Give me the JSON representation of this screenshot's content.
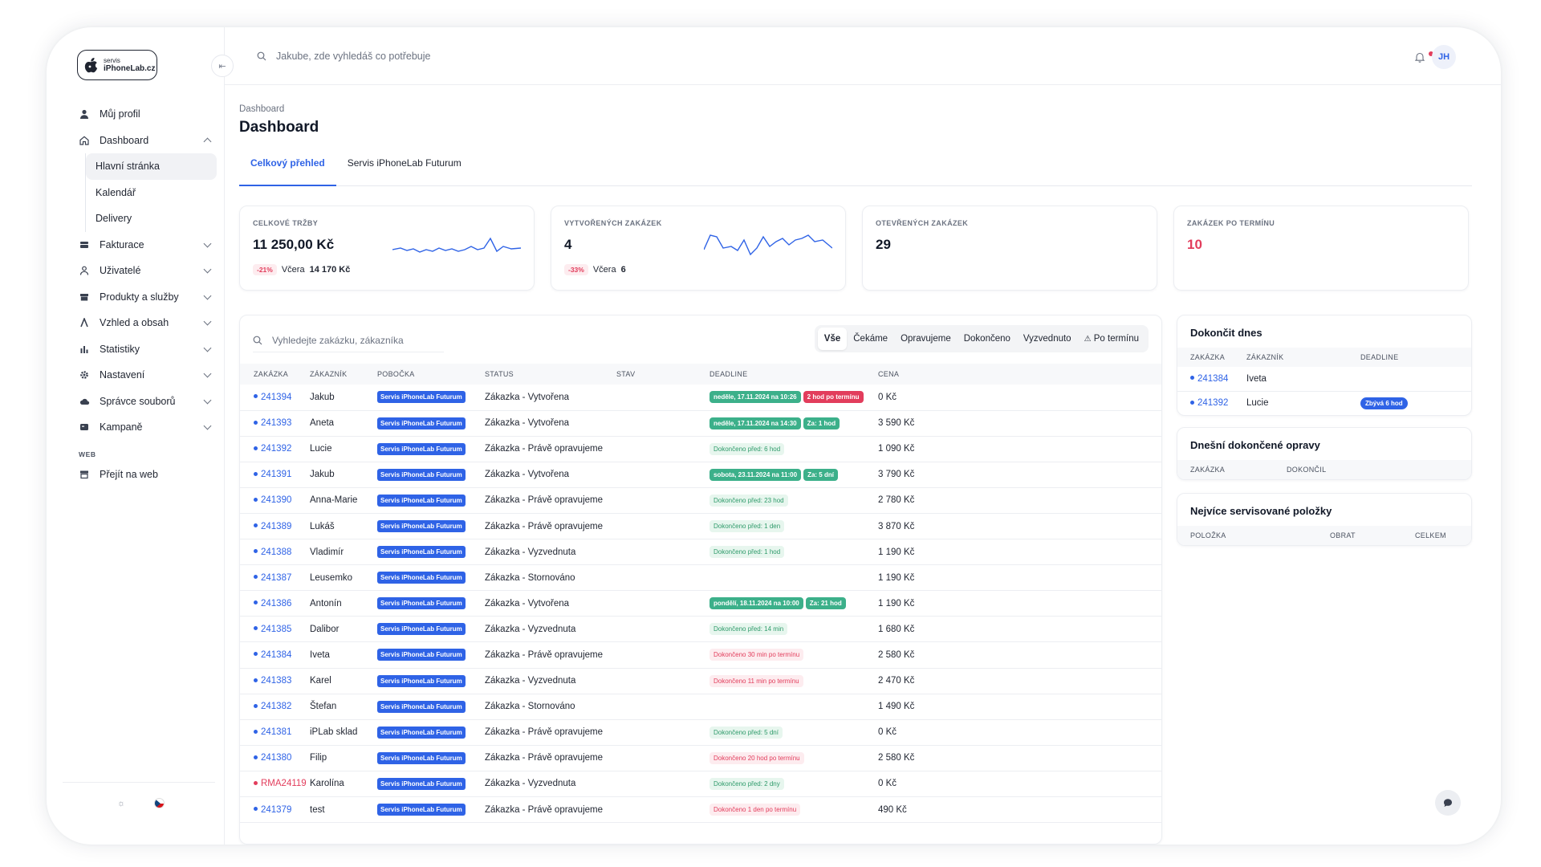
{
  "logo": {
    "small": "servis",
    "big": "iPhoneLab.cz"
  },
  "topbar": {
    "search_placeholder": "Jakube, zde vyhledáš co potřebuje",
    "avatar_initials": "JH"
  },
  "sidebar": {
    "items": [
      {
        "label": "Můj profil",
        "icon": "user-icon"
      },
      {
        "label": "Dashboard",
        "icon": "home-icon",
        "expanded": true,
        "children": [
          {
            "label": "Hlavní stránka",
            "active": true
          },
          {
            "label": "Kalendář"
          },
          {
            "label": "Delivery"
          }
        ]
      },
      {
        "label": "Fakturace",
        "icon": "invoice-icon"
      },
      {
        "label": "Uživatelé",
        "icon": "users-icon"
      },
      {
        "label": "Produkty a služby",
        "icon": "box-icon"
      },
      {
        "label": "Vzhled a obsah",
        "icon": "paint-icon"
      },
      {
        "label": "Statistiky",
        "icon": "chart-icon"
      },
      {
        "label": "Nastavení",
        "icon": "gear-icon"
      },
      {
        "label": "Správce souborů",
        "icon": "cloud-icon"
      },
      {
        "label": "Kampaně",
        "icon": "campaign-icon"
      }
    ],
    "section_web": "WEB",
    "web_item": "Přejít na web"
  },
  "main": {
    "breadcrumb": "Dashboard",
    "title": "Dashboard",
    "tabs": [
      "Celkový přehled",
      "Servis iPhoneLab Futurum"
    ]
  },
  "cards": [
    {
      "label": "CELKOVÉ TRŽBY",
      "value": "11 250,00 Kč",
      "pct": "-21%",
      "prev_label": "Včera",
      "prev_value": "14 170 Kč"
    },
    {
      "label": "VYTVOŘENÝCH ZAKÁZEK",
      "value": "4",
      "pct": "-33%",
      "prev_label": "Včera",
      "prev_value": "6"
    },
    {
      "label": "OTEVŘENÝCH ZAKÁZEK",
      "value": "29"
    },
    {
      "label": "ZAKÁZEK PO TERMÍNU",
      "value": "10"
    }
  ],
  "orders": {
    "search_placeholder": "Vyhledejte zakázku, zákazníka",
    "filters": [
      "Vše",
      "Čekáme",
      "Opravujeme",
      "Dokončeno",
      "Vyzvednuto",
      "Po termínu"
    ],
    "columns": [
      "ZAKÁZKA",
      "ZÁKAZNÍK",
      "POBOČKA",
      "STATUS",
      "STAV",
      "DEADLINE",
      "CENA"
    ],
    "branch": "Servis iPhoneLab Futurum",
    "rows": [
      {
        "id": "241394",
        "customer": "Jakub",
        "status": "Zákazka - Vytvořena",
        "deadline": [
          {
            "text": "neděle, 17.11.2024 na 10:26",
            "kind": "green"
          },
          {
            "text": "2 hod po termínu",
            "kind": "red"
          }
        ],
        "price": "0 Kč"
      },
      {
        "id": "241393",
        "customer": "Aneta",
        "status": "Zákazka - Vytvořena",
        "deadline": [
          {
            "text": "neděle, 17.11.2024 na 14:30",
            "kind": "green"
          },
          {
            "text": "Za: 1 hod",
            "kind": "green"
          }
        ],
        "price": "3 590 Kč"
      },
      {
        "id": "241392",
        "customer": "Lucie",
        "status": "Zákazka - Právě opravujeme",
        "deadline": [
          {
            "text": "Dokončeno před: 6 hod",
            "kind": "green-lt"
          }
        ],
        "price": "1 090 Kč"
      },
      {
        "id": "241391",
        "customer": "Jakub",
        "status": "Zákazka - Vytvořena",
        "deadline": [
          {
            "text": "sobota, 23.11.2024 na 11:00",
            "kind": "green"
          },
          {
            "text": "Za: 5 dní",
            "kind": "green"
          }
        ],
        "price": "3 790 Kč"
      },
      {
        "id": "241390",
        "customer": "Anna-Marie",
        "status": "Zákazka - Právě opravujeme",
        "deadline": [
          {
            "text": "Dokončeno před: 23 hod",
            "kind": "green-lt"
          }
        ],
        "price": "2 780 Kč"
      },
      {
        "id": "241389",
        "customer": "Lukáš",
        "status": "Zákazka - Právě opravujeme",
        "deadline": [
          {
            "text": "Dokončeno před: 1 den",
            "kind": "green-lt"
          }
        ],
        "price": "3 870 Kč"
      },
      {
        "id": "241388",
        "customer": "Vladimír",
        "status": "Zákazka - Vyzvednuta",
        "deadline": [
          {
            "text": "Dokončeno před: 1 hod",
            "kind": "green-lt"
          }
        ],
        "price": "1 190 Kč"
      },
      {
        "id": "241387",
        "customer": "Leusemko",
        "status": "Zákazka - Stornováno",
        "deadline": [],
        "price": "1 190 Kč"
      },
      {
        "id": "241386",
        "customer": "Antonín",
        "status": "Zákazka - Vytvořena",
        "deadline": [
          {
            "text": "pondělí, 18.11.2024 na 10:00",
            "kind": "green"
          },
          {
            "text": "Za: 21 hod",
            "kind": "green"
          }
        ],
        "price": "1 190 Kč"
      },
      {
        "id": "241385",
        "customer": "Dalibor",
        "status": "Zákazka - Vyzvednuta",
        "deadline": [
          {
            "text": "Dokončeno před: 14 min",
            "kind": "green-lt"
          }
        ],
        "price": "1 680 Kč"
      },
      {
        "id": "241384",
        "customer": "Iveta",
        "status": "Zákazka - Právě opravujeme",
        "deadline": [
          {
            "text": "Dokončeno 30 min po termínu",
            "kind": "red-lt"
          }
        ],
        "price": "2 580 Kč"
      },
      {
        "id": "241383",
        "customer": "Karel",
        "status": "Zákazka - Vyzvednuta",
        "deadline": [
          {
            "text": "Dokončeno 11 min po termínu",
            "kind": "red-lt"
          }
        ],
        "price": "2 470 Kč"
      },
      {
        "id": "241382",
        "customer": "Štefan",
        "status": "Zákazka - Stornováno",
        "deadline": [],
        "price": "1 490 Kč"
      },
      {
        "id": "241381",
        "customer": "iPLab sklad",
        "status": "Zákazka - Právě opravujeme",
        "deadline": [
          {
            "text": "Dokončeno před: 5 dní",
            "kind": "green-lt"
          }
        ],
        "price": "0 Kč"
      },
      {
        "id": "241380",
        "customer": "Filip",
        "status": "Zákazka - Právě opravujeme",
        "deadline": [
          {
            "text": "Dokončeno 20 hod po termínu",
            "kind": "red-lt"
          }
        ],
        "price": "2 580 Kč"
      },
      {
        "id": "RMA24119",
        "customer": "Karolína",
        "status": "Zákazka - Vyzvednuta",
        "deadline": [
          {
            "text": "Dokončeno před: 2 dny",
            "kind": "green-lt"
          }
        ],
        "price": "0 Kč",
        "rma": true
      },
      {
        "id": "241379",
        "customer": "test",
        "status": "Zákazka - Právě opravujeme",
        "deadline": [
          {
            "text": "Dokončeno 1 den po termínu",
            "kind": "red-lt"
          }
        ],
        "price": "490 Kč"
      }
    ]
  },
  "panels": {
    "finish_today": {
      "title": "Dokončit dnes",
      "columns": [
        "ZAKÁZKA",
        "ZÁKAZNÍK",
        "DEADLINE"
      ],
      "rows": [
        {
          "id": "241384",
          "customer": "Iveta",
          "deadline": ""
        },
        {
          "id": "241392",
          "customer": "Lucie",
          "deadline": "Zbývá 6 hod"
        }
      ]
    },
    "done_today": {
      "title": "Dnešní dokončené opravy",
      "columns": [
        "ZAKÁZKA",
        "DOKONČIL"
      ]
    },
    "top_items": {
      "title": "Nejvíce servisované položky",
      "columns": [
        "POLOŽKA",
        "OBRAT",
        "CELKEM"
      ]
    }
  },
  "colors": {
    "accent": "#2f63e6",
    "danger": "#e23d5c",
    "success": "#3cb08a"
  }
}
